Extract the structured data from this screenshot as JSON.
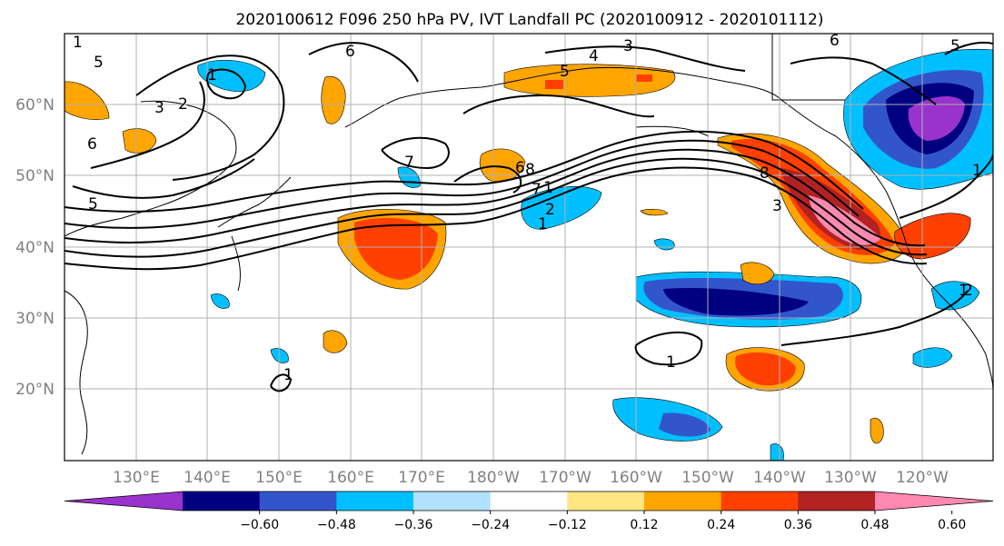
{
  "title": "2020100612 F096 250 hPa PV, IVT Landfall PC (2020100912 - 2020101112)",
  "lat_labels": [
    "60°N",
    "50°N",
    "40°N",
    "30°N",
    "20°N"
  ],
  "lon_labels": [
    "130°E",
    "140°E",
    "150°E",
    "160°E",
    "170°E",
    "180°W",
    "170°W",
    "160°W",
    "150°W",
    "140°W",
    "130°W",
    "120°W"
  ],
  "colorbar": {
    "colors": [
      "#9933cc",
      "#000080",
      "#3355cc",
      "#00bfff",
      "#b0e2ff",
      "#ffffff",
      "#ffe680",
      "#ffa500",
      "#ff4000",
      "#b22222",
      "#ff88b0"
    ],
    "tick_labels": [
      "-0.60",
      "-0.48",
      "-0.36",
      "-0.24",
      "-0.12",
      "0.12",
      "0.24",
      "0.36",
      "0.48",
      "0.60"
    ]
  },
  "contour_labels": [
    "1",
    "3",
    "4",
    "5",
    "6",
    "7",
    "5",
    "6",
    "5",
    "3",
    "2",
    "1",
    "7",
    "8",
    "1",
    "2",
    "1",
    "8",
    "3",
    "5",
    "1",
    "1",
    "1",
    "1",
    "2",
    "6",
    "6"
  ],
  "chart_data": {
    "type": "map",
    "title": "2020100612 F096 250 hPa PV, IVT Landfall PC (2020100912 - 2020101112)",
    "lon_range": [
      120,
      250
    ],
    "lat_range": [
      10,
      70
    ],
    "projection": "plate carree",
    "grid": true,
    "shading_variable": "IVT Landfall PC",
    "shading_levels": [
      -0.6,
      -0.48,
      -0.36,
      -0.24,
      -0.12,
      0.12,
      0.24,
      0.36,
      0.48,
      0.6
    ],
    "contour_variable": "250 hPa PV"
  }
}
